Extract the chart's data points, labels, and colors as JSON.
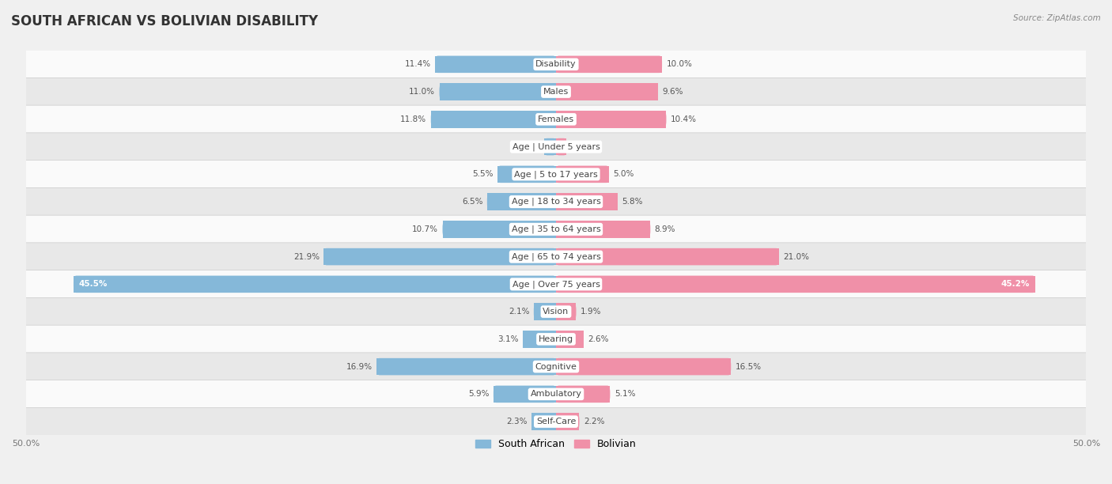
{
  "title": "SOUTH AFRICAN VS BOLIVIAN DISABILITY",
  "source": "Source: ZipAtlas.com",
  "categories": [
    "Disability",
    "Males",
    "Females",
    "Age | Under 5 years",
    "Age | 5 to 17 years",
    "Age | 18 to 34 years",
    "Age | 35 to 64 years",
    "Age | 65 to 74 years",
    "Age | Over 75 years",
    "Vision",
    "Hearing",
    "Cognitive",
    "Ambulatory",
    "Self-Care"
  ],
  "south_african": [
    11.4,
    11.0,
    11.8,
    1.1,
    5.5,
    6.5,
    10.7,
    21.9,
    45.5,
    2.1,
    3.1,
    16.9,
    5.9,
    2.3
  ],
  "bolivian": [
    10.0,
    9.6,
    10.4,
    1.0,
    5.0,
    5.8,
    8.9,
    21.0,
    45.2,
    1.9,
    2.6,
    16.5,
    5.1,
    2.2
  ],
  "south_african_color": "#85b8d9",
  "bolivian_color": "#f090a8",
  "max_value": 50.0,
  "background_color": "#f0f0f0",
  "row_bg_light": "#fafafa",
  "row_bg_dark": "#e8e8e8",
  "title_fontsize": 12,
  "label_fontsize": 8,
  "value_fontsize": 7.5,
  "axis_label_fontsize": 8
}
